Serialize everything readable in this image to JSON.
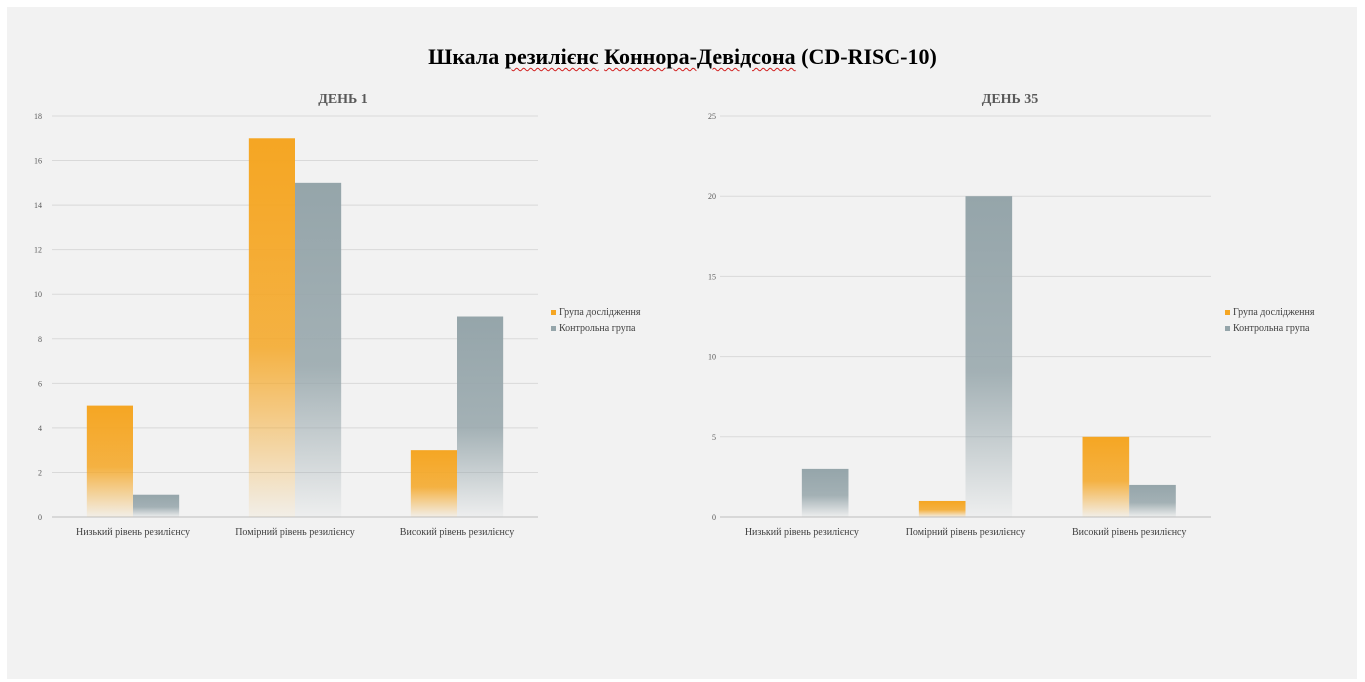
{
  "title": {
    "parts": [
      {
        "text": "Шкала ",
        "squiggle": false
      },
      {
        "text": "резилієнс",
        "squiggle": true
      },
      {
        "text": " ",
        "squiggle": false
      },
      {
        "text": "Коннора-Девідсона",
        "squiggle": true
      },
      {
        "text": " (CD-RISC-10)",
        "squiggle": false
      }
    ]
  },
  "colors": {
    "series1": "#f5a623",
    "series2": "#95a5aa",
    "grid": "#d9d9d9",
    "axis_text": "#595959"
  },
  "chart_data": [
    {
      "type": "bar",
      "title": "ДЕНЬ 1",
      "categories": [
        "Низький рівень резилієнсу",
        "Помірний рівень резилієнсу",
        "Високий рівень резилієнсу"
      ],
      "series": [
        {
          "name": "Група дослідження",
          "values": [
            5,
            17,
            3
          ]
        },
        {
          "name": "Контрольна група",
          "values": [
            1,
            15,
            9
          ]
        }
      ],
      "ylim": [
        0,
        18
      ],
      "yticks": [
        0,
        2,
        4,
        6,
        8,
        10,
        12,
        14,
        16,
        18
      ],
      "grid": true,
      "legend": "right"
    },
    {
      "type": "bar",
      "title": "ДЕНЬ 35",
      "categories": [
        "Низький рівень резилієнсу",
        "Помірний рівень резилієнсу",
        "Високий рівень резилієнсу"
      ],
      "series": [
        {
          "name": "Група дослідження",
          "values": [
            0,
            1,
            5
          ]
        },
        {
          "name": "Контрольна група",
          "values": [
            3,
            20,
            2
          ]
        }
      ],
      "ylim": [
        0,
        25
      ],
      "yticks": [
        0,
        5,
        10,
        15,
        20,
        25
      ],
      "grid": true,
      "legend": "right"
    }
  ]
}
